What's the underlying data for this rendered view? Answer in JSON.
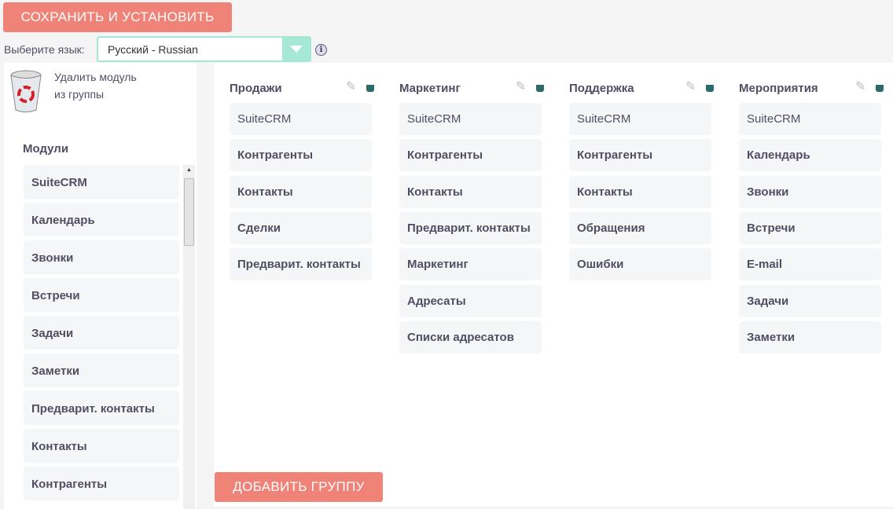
{
  "toolbar": {
    "save_label": "СОХРАНИТЬ И УСТАНОВИТЬ"
  },
  "language": {
    "label": "Выберите язык:",
    "value": "Русский - Russian"
  },
  "delete_zone": {
    "line1": "Удалить модуль",
    "line2": "из группы"
  },
  "modules": {
    "title": "Модули",
    "items": [
      "SuiteCRM",
      "Календарь",
      "Звонки",
      "Встречи",
      "Задачи",
      "Заметки",
      "Предварит. контакты",
      "Контакты",
      "Контрагенты"
    ]
  },
  "groups": [
    {
      "title": "Продажи",
      "items": [
        "SuiteCRM",
        "Контрагенты",
        "Контакты",
        "Сделки",
        "Предварит. контакты"
      ]
    },
    {
      "title": "Маркетинг",
      "items": [
        "SuiteCRM",
        "Контрагенты",
        "Контакты",
        "Предварит. контакты",
        "Маркетинг",
        "Адресаты",
        "Списки адресатов"
      ]
    },
    {
      "title": "Поддержка",
      "items": [
        "SuiteCRM",
        "Контрагенты",
        "Контакты",
        "Обращения",
        "Ошибки"
      ]
    },
    {
      "title": "Мероприятия",
      "items": [
        "SuiteCRM",
        "Календарь",
        "Звонки",
        "Встречи",
        "E-mail",
        "Задачи",
        "Заметки"
      ]
    }
  ],
  "add_group_label": "ДОБАВИТЬ ГРУППУ",
  "colors": {
    "button": "#f08377",
    "select_accent": "#a5e8d6",
    "text": "#534d64"
  }
}
